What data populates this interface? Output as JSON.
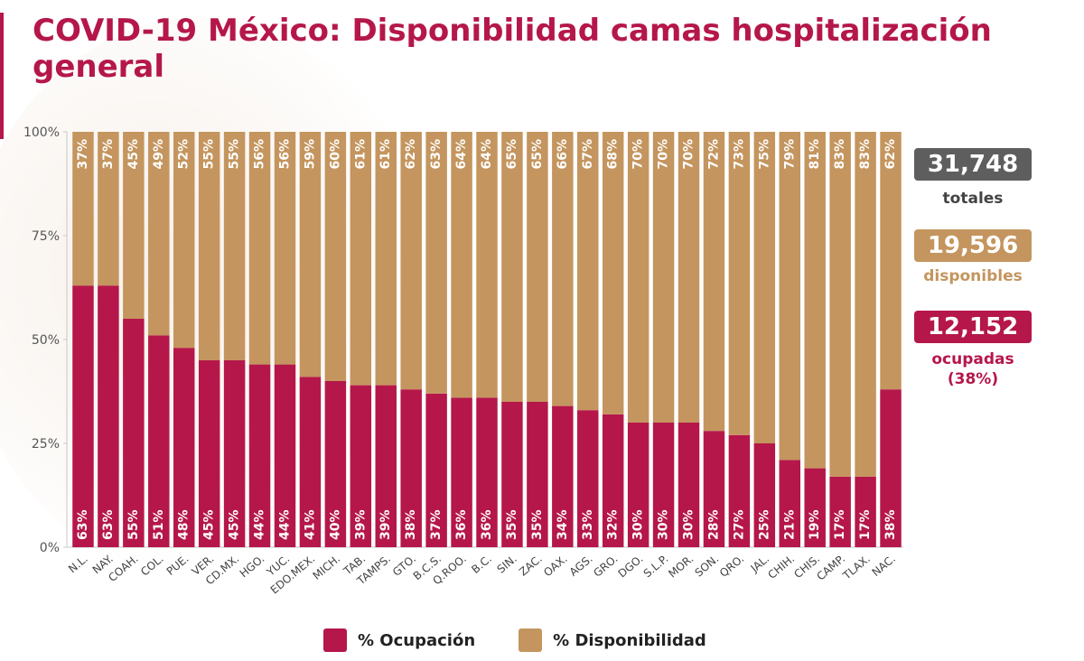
{
  "title": "COVID-19 México: Disponibilidad camas hospitalización general",
  "colors": {
    "ocupacion": "#b5174a",
    "disponibilidad": "#c4955e",
    "totales_badge": "#5e5e5e",
    "title": "#b5174a"
  },
  "summary": {
    "totales_value": "31,748",
    "totales_label": "totales",
    "disponibles_value": "19,596",
    "disponibles_label": "disponibles",
    "ocupadas_value": "12,152",
    "ocupadas_label": "ocupadas",
    "ocupadas_pct": "(38%)"
  },
  "legend": {
    "ocupacion": "% Ocupación",
    "disponibilidad": "% Disponibilidad"
  },
  "chart_data": {
    "type": "bar",
    "stacked": true,
    "ylim": [
      0,
      100
    ],
    "yticks": [
      "0%",
      "25%",
      "50%",
      "75%",
      "100%"
    ],
    "ytick_values": [
      0,
      25,
      50,
      75,
      100
    ],
    "grid": false,
    "legend_position": "bottom",
    "categories": [
      "N.L.",
      "NAY.",
      "COAH.",
      "COL.",
      "PUE.",
      "VER.",
      "CD.MX.",
      "HGO.",
      "YUC.",
      "EDO.MEX.",
      "MICH.",
      "TAB.",
      "TAMPS.",
      "GTO.",
      "B.C.S.",
      "Q.ROO.",
      "B.C.",
      "SIN.",
      "ZAC.",
      "OAX.",
      "AGS.",
      "GRO.",
      "DGO.",
      "S.L.P.",
      "MOR.",
      "SON.",
      "QRO.",
      "JAL.",
      "CHIH.",
      "CHIS.",
      "CAMP.",
      "TLAX.",
      "NAC."
    ],
    "series": [
      {
        "name": "% Ocupación",
        "values": [
          63,
          63,
          55,
          51,
          48,
          45,
          45,
          44,
          44,
          41,
          40,
          39,
          39,
          38,
          37,
          36,
          36,
          35,
          35,
          34,
          33,
          32,
          30,
          30,
          30,
          28,
          27,
          25,
          21,
          19,
          17,
          17,
          38
        ]
      },
      {
        "name": "% Disponibilidad",
        "values": [
          37,
          37,
          45,
          49,
          52,
          55,
          55,
          56,
          56,
          59,
          60,
          61,
          61,
          62,
          63,
          64,
          64,
          65,
          65,
          66,
          67,
          68,
          70,
          70,
          70,
          72,
          73,
          75,
          79,
          81,
          83,
          83,
          62
        ]
      }
    ],
    "value_labels_ocupacion": [
      "63%",
      "63%",
      "55%",
      "51%",
      "48%",
      "45%",
      "45%",
      "44%",
      "44%",
      "41%",
      "40%",
      "39%",
      "39%",
      "38%",
      "37%",
      "36%",
      "36%",
      "35%",
      "35%",
      "34%",
      "33%",
      "32%",
      "30%",
      "30%",
      "30%",
      "28%",
      "27%",
      "25%",
      "21%",
      "19%",
      "17%",
      "17%",
      "38%"
    ],
    "value_labels_disponibilidad": [
      "37%",
      "37%",
      "45%",
      "49%",
      "52%",
      "55%",
      "55%",
      "56%",
      "56%",
      "59%",
      "60%",
      "61%",
      "61%",
      "62%",
      "63%",
      "64%",
      "64%",
      "65%",
      "65%",
      "66%",
      "67%",
      "68%",
      "70%",
      "70%",
      "70%",
      "72%",
      "73%",
      "75%",
      "79%",
      "81%",
      "83%",
      "83%",
      "62%"
    ]
  }
}
